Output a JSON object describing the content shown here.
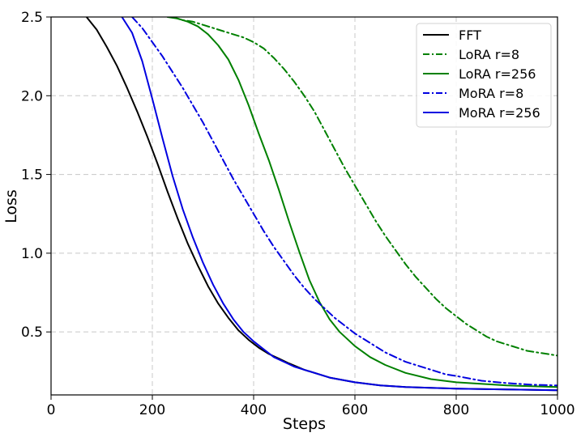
{
  "chart_data": {
    "type": "line",
    "title": "",
    "xlabel": "Steps",
    "ylabel": "Loss",
    "xlim": [
      0,
      1000
    ],
    "ylim": [
      0.1,
      2.5
    ],
    "xticks": [
      0,
      200,
      400,
      600,
      800,
      1000
    ],
    "yticks": [
      0.5,
      1.0,
      1.5,
      2.0,
      2.5
    ],
    "xtick_labels": [
      "0",
      "200",
      "400",
      "600",
      "800",
      "1000"
    ],
    "ytick_labels": [
      "0.5",
      "1.0",
      "1.5",
      "2.0",
      "2.5"
    ],
    "grid": true,
    "legend_position": "top-right",
    "series": [
      {
        "name": "FFT",
        "color": "#000000",
        "style": "solid",
        "x": [
          60,
          70,
          90,
          110,
          130,
          150,
          170,
          190,
          210,
          230,
          250,
          270,
          290,
          310,
          330,
          350,
          370,
          390,
          410,
          430,
          450,
          470,
          500,
          550,
          600,
          650,
          700,
          800,
          900,
          1000
        ],
        "y": [
          2.55,
          2.5,
          2.42,
          2.31,
          2.19,
          2.05,
          1.9,
          1.74,
          1.57,
          1.39,
          1.22,
          1.06,
          0.92,
          0.79,
          0.68,
          0.59,
          0.51,
          0.45,
          0.4,
          0.36,
          0.33,
          0.3,
          0.26,
          0.21,
          0.18,
          0.16,
          0.15,
          0.14,
          0.135,
          0.13
        ]
      },
      {
        "name": "LoRA r=8",
        "color": "#008000",
        "style": "dashdot",
        "x": [
          240,
          260,
          280,
          300,
          320,
          340,
          360,
          380,
          400,
          420,
          440,
          460,
          480,
          500,
          520,
          540,
          560,
          580,
          600,
          620,
          640,
          660,
          680,
          700,
          720,
          740,
          760,
          780,
          800,
          820,
          840,
          860,
          880,
          900,
          920,
          940,
          960,
          980,
          1000
        ],
        "y": [
          2.5,
          2.48,
          2.47,
          2.45,
          2.43,
          2.41,
          2.39,
          2.37,
          2.34,
          2.3,
          2.24,
          2.17,
          2.09,
          2.0,
          1.9,
          1.78,
          1.66,
          1.54,
          1.43,
          1.32,
          1.21,
          1.11,
          1.02,
          0.93,
          0.85,
          0.78,
          0.71,
          0.65,
          0.6,
          0.55,
          0.51,
          0.47,
          0.44,
          0.42,
          0.4,
          0.38,
          0.37,
          0.36,
          0.35
        ]
      },
      {
        "name": "LoRA r=256",
        "color": "#008000",
        "style": "solid",
        "x": [
          230,
          250,
          270,
          290,
          310,
          330,
          350,
          370,
          390,
          410,
          430,
          450,
          470,
          490,
          510,
          530,
          550,
          570,
          600,
          630,
          660,
          700,
          750,
          800,
          900,
          1000
        ],
        "y": [
          2.5,
          2.49,
          2.47,
          2.44,
          2.39,
          2.32,
          2.23,
          2.1,
          1.94,
          1.76,
          1.59,
          1.4,
          1.2,
          1.01,
          0.83,
          0.69,
          0.58,
          0.5,
          0.41,
          0.34,
          0.29,
          0.24,
          0.2,
          0.18,
          0.16,
          0.15
        ]
      },
      {
        "name": "MoRA r=8",
        "color": "#0000e0",
        "style": "dashdot",
        "x": [
          160,
          180,
          200,
          220,
          240,
          260,
          280,
          300,
          320,
          340,
          360,
          380,
          400,
          420,
          440,
          460,
          480,
          500,
          520,
          540,
          560,
          580,
          600,
          620,
          640,
          660,
          680,
          700,
          720,
          740,
          760,
          780,
          800,
          850,
          900,
          950,
          1000
        ],
        "y": [
          2.5,
          2.43,
          2.34,
          2.25,
          2.15,
          2.05,
          1.94,
          1.83,
          1.71,
          1.59,
          1.47,
          1.36,
          1.25,
          1.14,
          1.04,
          0.95,
          0.86,
          0.78,
          0.71,
          0.65,
          0.59,
          0.54,
          0.49,
          0.45,
          0.41,
          0.37,
          0.34,
          0.31,
          0.29,
          0.27,
          0.25,
          0.23,
          0.22,
          0.19,
          0.175,
          0.165,
          0.16
        ]
      },
      {
        "name": "MoRA r=256",
        "color": "#0000e0",
        "style": "solid",
        "x": [
          140,
          160,
          180,
          200,
          220,
          240,
          260,
          280,
          300,
          320,
          340,
          360,
          380,
          400,
          420,
          440,
          460,
          480,
          500,
          550,
          600,
          650,
          700,
          800,
          900,
          1000
        ],
        "y": [
          2.5,
          2.4,
          2.22,
          1.98,
          1.73,
          1.49,
          1.28,
          1.1,
          0.94,
          0.8,
          0.68,
          0.58,
          0.5,
          0.44,
          0.39,
          0.34,
          0.31,
          0.28,
          0.26,
          0.21,
          0.18,
          0.16,
          0.15,
          0.14,
          0.135,
          0.13
        ]
      }
    ]
  }
}
